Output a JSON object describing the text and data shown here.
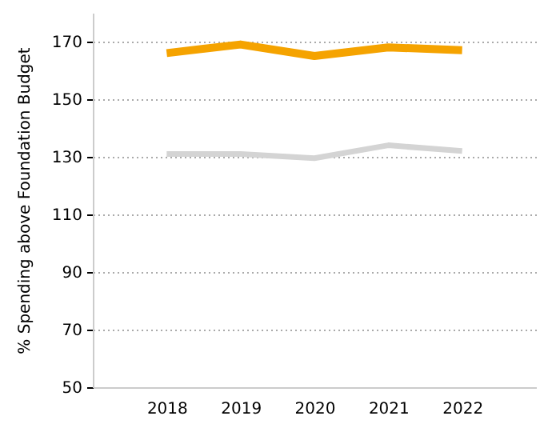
{
  "chart_data": {
    "type": "line",
    "ylabel": "% Spending above Foundation Budget",
    "x": [
      2018,
      2019,
      2020,
      2021,
      2022
    ],
    "series": [
      {
        "color": "#f5a300",
        "values": [
          166,
          169,
          165,
          168,
          167
        ]
      },
      {
        "color": "#d4d4d4",
        "values": [
          131,
          131,
          129.5,
          134,
          132
        ]
      }
    ],
    "xlim": [
      2017,
      2023
    ],
    "xticks": [
      2018,
      2019,
      2020,
      2021,
      2022
    ],
    "ylim": [
      50,
      180
    ],
    "yticks": [
      50,
      70,
      90,
      110,
      130,
      150,
      170
    ],
    "grid": "y",
    "marker": "none",
    "line_style": "solid"
  }
}
